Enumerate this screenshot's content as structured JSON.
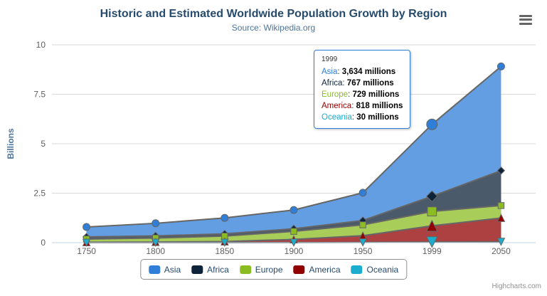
{
  "credits": "Highcharts.com",
  "chart_data": {
    "type": "area",
    "stacking": "normal",
    "title": "Historic and Estimated Worldwide Population Growth by Region",
    "subtitle": "Source: Wikipedia.org",
    "ylabel": "Billions",
    "unit": "millions",
    "yaxis_unit": "billions",
    "grid": true,
    "legend_position": "bottom",
    "categories": [
      "1750",
      "1800",
      "1850",
      "1900",
      "1950",
      "1999",
      "2050"
    ],
    "yticks": [
      0,
      2.5,
      5,
      7.5,
      10
    ],
    "ylim": [
      0,
      10
    ],
    "line_color": "#666666",
    "axis_line_color": "#c0d0e0",
    "grid_color": "#d8d8d8",
    "series": [
      {
        "name": "Asia",
        "color": "#2f7ed8",
        "marker": "circle",
        "values": [
          502,
          635,
          809,
          947,
          1402,
          3634,
          5268
        ]
      },
      {
        "name": "Africa",
        "color": "#0d233a",
        "marker": "diamond",
        "values": [
          106,
          107,
          111,
          133,
          221,
          767,
          1766
        ]
      },
      {
        "name": "Europe",
        "color": "#8bbc21",
        "marker": "square",
        "values": [
          163,
          203,
          276,
          408,
          547,
          729,
          628
        ]
      },
      {
        "name": "America",
        "color": "#910000",
        "marker": "triangle",
        "values": [
          18,
          31,
          54,
          156,
          339,
          818,
          1201
        ]
      },
      {
        "name": "Oceania",
        "color": "#1aadce",
        "marker": "triangle-down",
        "values": [
          2,
          2,
          2,
          6,
          13,
          30,
          46
        ]
      }
    ],
    "tooltip": {
      "header": "1999",
      "hover_category_index": 5,
      "rows": [
        {
          "name": "Asia",
          "value": "3,634 millions"
        },
        {
          "name": "Africa",
          "value": "767 millions"
        },
        {
          "name": "Europe",
          "value": "729 millions"
        },
        {
          "name": "America",
          "value": "818 millions"
        },
        {
          "name": "Oceania",
          "value": "30 millions"
        }
      ]
    }
  }
}
